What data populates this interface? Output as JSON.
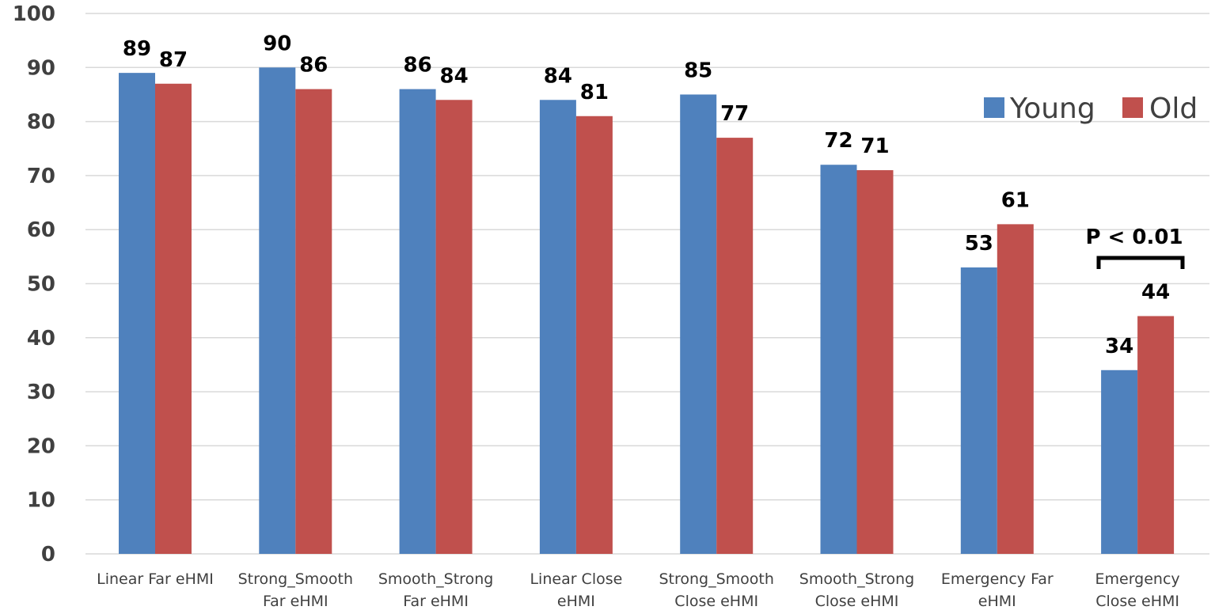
{
  "chart_data": {
    "type": "bar",
    "categories": [
      [
        "Linear Far eHMI"
      ],
      [
        "Strong_Smooth",
        "Far eHMI"
      ],
      [
        "Smooth_Strong",
        "Far eHMI"
      ],
      [
        "Linear Close",
        "eHMI"
      ],
      [
        "Strong_Smooth",
        "Close eHMI"
      ],
      [
        "Smooth_Strong",
        "Close eHMI"
      ],
      [
        "Emergency Far",
        "eHMI"
      ],
      [
        "Emergency",
        "Close eHMI"
      ]
    ],
    "series": [
      {
        "name": "Young",
        "color": "#4F81BD",
        "values": [
          89,
          90,
          86,
          84,
          85,
          72,
          53,
          34
        ]
      },
      {
        "name": "Old",
        "color": "#C0504D",
        "values": [
          87,
          86,
          84,
          81,
          77,
          71,
          61,
          44
        ]
      }
    ],
    "ylim": [
      0,
      100
    ],
    "yticks": [
      0,
      10,
      20,
      30,
      40,
      50,
      60,
      70,
      80,
      90,
      100
    ],
    "grid": true,
    "legend_position": "top-right",
    "annotation": {
      "text": "P < 0.01",
      "category_index": 7
    }
  }
}
